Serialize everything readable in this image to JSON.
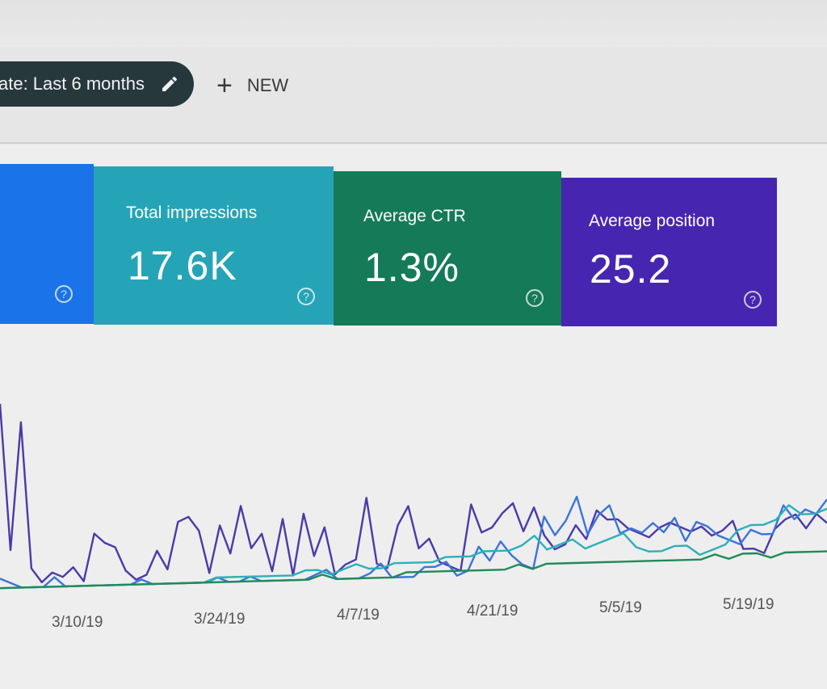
{
  "toolbar": {
    "date_filter_label": "ate: Last 6 months",
    "new_label": "NEW"
  },
  "cards": [
    {
      "id": "clicks",
      "label": "",
      "value": "",
      "color": "#1a73e8"
    },
    {
      "id": "impressions",
      "label": "Total impressions",
      "value": "17.6K",
      "color": "#26a4b7"
    },
    {
      "id": "ctr",
      "label": "Average CTR",
      "value": "1.3%",
      "color": "#157a58"
    },
    {
      "id": "position",
      "label": "Average position",
      "value": "25.2",
      "color": "#4626b0"
    }
  ],
  "icons": {
    "help": "help-circle-icon",
    "edit": "pencil-icon",
    "add": "plus-icon"
  },
  "chart_data": {
    "type": "line",
    "x_ticks": [
      "3/10/19",
      "3/24/19",
      "4/7/19",
      "4/21/19",
      "5/5/19",
      "5/19/19"
    ],
    "series": [
      {
        "color": "#4b3aa8",
        "values": [
          40,
          9,
          36,
          5,
          2,
          4,
          3,
          5,
          2,
          12,
          10,
          9,
          4,
          2,
          3,
          8,
          4,
          14,
          15,
          12,
          3,
          13,
          7,
          17,
          8,
          11,
          3,
          14,
          2,
          15,
          6,
          12,
          2,
          4,
          5,
          18,
          4,
          3,
          12,
          16,
          7,
          9,
          4,
          3,
          2,
          16,
          10,
          11,
          14,
          16,
          10,
          15,
          9,
          6,
          7,
          11,
          8,
          14,
          12,
          12,
          10,
          9,
          8,
          10,
          11,
          10,
          9,
          10,
          8,
          9,
          11,
          5,
          5,
          4,
          9,
          11,
          12,
          9,
          12,
          10
        ]
      },
      {
        "color": "#3b74d9",
        "values": [
          3,
          2,
          1,
          1,
          1,
          3,
          1,
          1,
          1,
          1,
          1,
          1,
          1,
          2,
          1,
          1,
          1,
          1,
          1,
          1,
          2,
          1,
          1,
          2,
          1,
          1,
          1,
          1,
          1,
          2,
          3,
          1,
          1,
          1,
          2,
          4,
          1,
          1,
          1,
          3,
          3,
          4,
          1,
          2,
          7,
          4,
          8,
          5,
          3,
          2,
          13,
          9,
          12,
          17,
          9,
          13,
          15,
          9,
          10,
          9,
          11,
          9,
          12,
          7,
          11,
          10,
          8,
          7,
          6,
          9,
          8,
          8,
          14,
          11,
          13,
          12,
          15
        ]
      },
      {
        "color": "#2bb0b8",
        "values": [
          1,
          1,
          1,
          1,
          1,
          1,
          1,
          1,
          1,
          1,
          1,
          1,
          1,
          1,
          1,
          1,
          1,
          2,
          2,
          2,
          2,
          2,
          2,
          2,
          3,
          3,
          2,
          3,
          4,
          3,
          3,
          4,
          4,
          4,
          4,
          5,
          5,
          5,
          6,
          6,
          6,
          7,
          9,
          6,
          7,
          8,
          6,
          7,
          8,
          9,
          6,
          5,
          5,
          6,
          6,
          4,
          5,
          6,
          9,
          10,
          10,
          11,
          14,
          12,
          12,
          13
        ]
      },
      {
        "color": "#1f8a5a",
        "values": [
          1,
          1,
          1,
          1,
          1,
          1,
          1,
          1,
          1,
          1,
          1,
          1,
          1,
          1,
          1,
          1,
          1,
          1,
          1,
          1,
          1,
          1,
          1,
          2,
          1,
          1,
          1,
          1,
          1,
          2,
          2,
          2,
          2,
          2,
          2,
          2,
          2,
          3,
          2,
          3,
          3,
          3,
          3,
          3,
          3,
          3,
          3,
          3,
          3,
          3,
          3,
          4,
          3,
          4,
          4,
          3,
          4,
          4,
          4,
          4
        ]
      }
    ]
  }
}
